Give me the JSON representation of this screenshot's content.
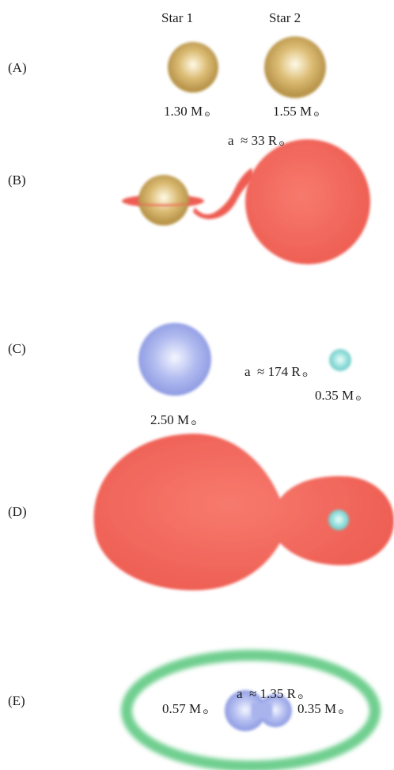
{
  "headers": {
    "star1": "Star 1",
    "star2": "Star 2"
  },
  "panels": [
    {
      "id": "A",
      "label": "(A)",
      "star1_mass": "1.30 M",
      "star2_mass": "1.55 M",
      "separation": "a  ≈ 33 R"
    },
    {
      "id": "B",
      "label": "(B)"
    },
    {
      "id": "C",
      "label": "(C)",
      "star1_mass": "2.50 M",
      "star2_mass": "0.35 M",
      "separation": "a  ≈ 174 R"
    },
    {
      "id": "D",
      "label": "(D)"
    },
    {
      "id": "E",
      "label": "(E)",
      "star1_mass": "0.57 M",
      "star2_mass": "0.35 M",
      "separation": "a  ≈ 1.35 R"
    }
  ],
  "solar_symbol": "⊙",
  "colors": {
    "main_sequence_star": "#d4b36a",
    "red_giant_envelope": "#f06055",
    "hot_star": "#a8b4ec",
    "compact_companion": "#8fdcd8",
    "circumbinary_disk": "#6fcf8f"
  }
}
